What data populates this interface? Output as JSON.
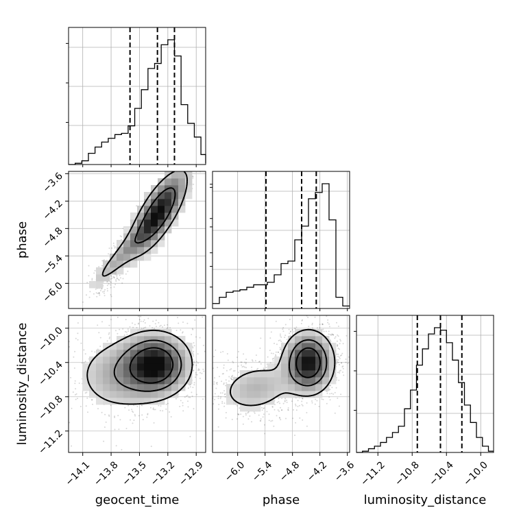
{
  "chart_data": {
    "type": "corner",
    "parameters": [
      "geocent_time",
      "phase",
      "luminosity_distance"
    ],
    "axis_labels": {
      "x": [
        "geocent_time",
        "phase",
        "luminosity_distance"
      ],
      "y": [
        "phase",
        "luminosity_distance"
      ]
    },
    "ranges": [
      [
        -14.25,
        -12.8
      ],
      [
        -6.55,
        -3.55
      ],
      [
        -11.45,
        -9.85
      ]
    ],
    "ticks": [
      [
        "−14.1",
        "−13.8",
        "−13.5",
        "−13.2",
        "−12.9"
      ],
      [
        "−6.0",
        "−5.4",
        "−4.8",
        "−4.2",
        "−3.6"
      ],
      [
        "−11.2",
        "−10.8",
        "−10.4",
        "−10.0"
      ]
    ],
    "tick_values": [
      [
        -14.1,
        -13.8,
        -13.5,
        -13.2,
        -12.9
      ],
      [
        -6.0,
        -5.4,
        -4.8,
        -4.2,
        -3.6
      ],
      [
        -11.2,
        -10.8,
        -10.4,
        -10.0
      ]
    ],
    "histograms": [
      {
        "parameter": "geocent_time",
        "bin_edges": [
          -14.25,
          -14.18,
          -14.11,
          -14.04,
          -13.97,
          -13.9,
          -13.83,
          -13.76,
          -13.69,
          -13.62,
          -13.55,
          -13.48,
          -13.41,
          -13.34,
          -13.27,
          -13.2,
          -13.13,
          -13.06,
          -12.99,
          -12.92,
          -12.85,
          -12.8
        ],
        "heights": [
          0.0,
          0.01,
          0.03,
          0.09,
          0.14,
          0.18,
          0.21,
          0.24,
          0.25,
          0.31,
          0.45,
          0.6,
          0.77,
          0.81,
          0.96,
          1.0,
          0.87,
          0.48,
          0.33,
          0.22,
          0.08,
          0.01
        ],
        "quantiles": [
          -13.6,
          -13.31,
          -13.13
        ]
      },
      {
        "parameter": "phase",
        "bin_edges": [
          -6.55,
          -6.4,
          -6.25,
          -6.1,
          -5.95,
          -5.8,
          -5.65,
          -5.5,
          -5.35,
          -5.2,
          -5.05,
          -4.9,
          -4.75,
          -4.6,
          -4.45,
          -4.3,
          -4.15,
          -4.0,
          -3.85,
          -3.7,
          -3.55
        ],
        "heights": [
          0.04,
          0.09,
          0.13,
          0.14,
          0.15,
          0.17,
          0.19,
          0.19,
          0.21,
          0.27,
          0.36,
          0.38,
          0.55,
          0.66,
          0.88,
          0.93,
          1.0,
          0.71,
          0.09,
          0.02
        ],
        "quantiles": [
          -5.38,
          -4.6,
          -4.28
        ]
      },
      {
        "parameter": "luminosity_distance",
        "bin_edges": [
          -11.45,
          -11.38,
          -11.31,
          -11.24,
          -11.17,
          -11.1,
          -11.03,
          -10.96,
          -10.89,
          -10.82,
          -10.75,
          -10.68,
          -10.61,
          -10.54,
          -10.47,
          -10.4,
          -10.33,
          -10.26,
          -10.19,
          -10.12,
          -10.05,
          -9.98,
          -9.91,
          -9.85
        ],
        "heights": [
          0.0,
          0.01,
          0.03,
          0.05,
          0.08,
          0.12,
          0.16,
          0.21,
          0.35,
          0.5,
          0.7,
          0.83,
          0.95,
          1.0,
          0.98,
          0.88,
          0.74,
          0.56,
          0.38,
          0.24,
          0.12,
          0.05,
          0.01
        ],
        "quantiles": [
          -10.74,
          -10.47,
          -10.22
        ]
      }
    ],
    "joint_panels": [
      {
        "x": "geocent_time",
        "y": "phase",
        "correlation": "positive",
        "mode": [
          -13.28,
          -4.35
        ],
        "contour_levels": [
          "inner",
          "outer"
        ]
      },
      {
        "x": "geocent_time",
        "y": "luminosity_distance",
        "correlation": "none",
        "mode": [
          -13.35,
          -10.42
        ],
        "contour_levels": [
          "inner",
          "middle",
          "outer"
        ]
      },
      {
        "x": "phase",
        "y": "luminosity_distance",
        "correlation": "weak positive",
        "mode": [
          -4.45,
          -10.4
        ],
        "contour_levels": [
          "inner",
          "middle",
          "outer"
        ]
      }
    ],
    "grid": true,
    "quantile_style": "dashed"
  }
}
